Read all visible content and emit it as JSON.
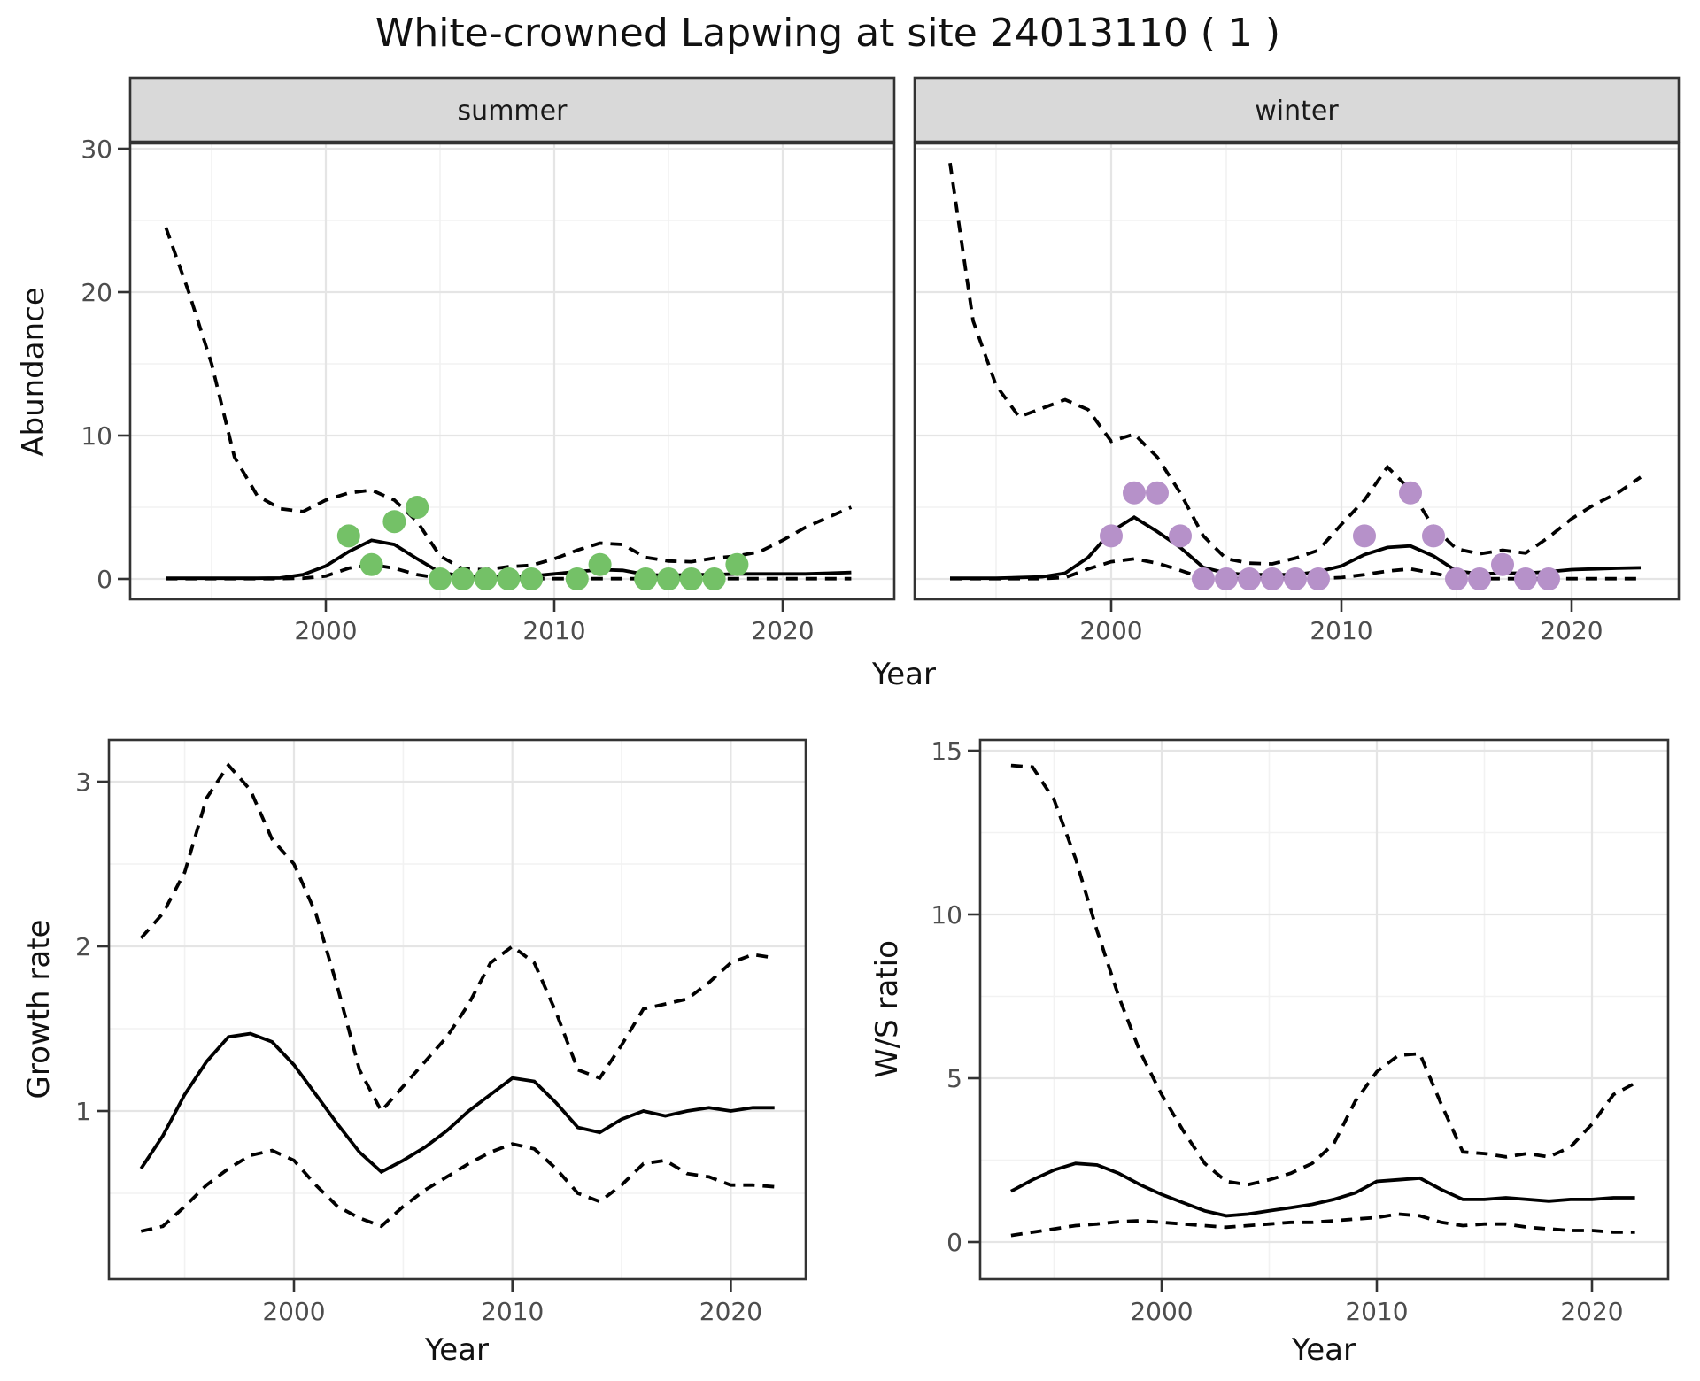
{
  "title": "White-crowned Lapwing at site 24013110 ( 1 )",
  "axis_titles": {
    "abundance": "Abundance",
    "year_top": "Year",
    "growth": "Growth rate",
    "year_growth": "Year",
    "ws": "W/S ratio",
    "year_ws": "Year"
  },
  "colors": {
    "summer_dots": "#74c167",
    "winter_dots": "#b691c9",
    "line": "#000000",
    "panel_border": "#333333",
    "grid_major": "#e5e5e5",
    "grid_minor": "#f2f2f2",
    "strip_bg": "#d9d9d9",
    "tick_text": "#4d4d4d"
  },
  "chart_data": {
    "type": "line",
    "title": "White-crowned Lapwing at site 24013110 ( 1 )",
    "abundance": {
      "ylabel": "Abundance",
      "xlabel": "Year",
      "x_start": 1993,
      "xticks": [
        2000,
        2010,
        2020
      ],
      "x_minor": [
        1995,
        2005,
        2015
      ],
      "yticks": [
        0,
        10,
        20,
        30
      ],
      "y_minor": [
        5,
        15,
        25
      ],
      "ylim": [
        -1.4,
        30.4
      ],
      "panels": [
        {
          "label": "summer",
          "fit": [
            0.05,
            0.05,
            0.05,
            0.05,
            0.05,
            0.07,
            0.3,
            0.9,
            1.9,
            2.7,
            2.4,
            1.4,
            0.45,
            0.2,
            0.15,
            0.15,
            0.2,
            0.35,
            0.5,
            0.65,
            0.6,
            0.3,
            0.25,
            0.3,
            0.3,
            0.35,
            0.35,
            0.35,
            0.35,
            0.4,
            0.45
          ],
          "upper": [
            24.5,
            20,
            15,
            8.5,
            5.8,
            4.9,
            4.7,
            5.5,
            6.0,
            6.2,
            5.5,
            4.0,
            1.6,
            0.7,
            0.65,
            0.85,
            0.95,
            1.4,
            2.0,
            2.5,
            2.4,
            1.5,
            1.25,
            1.2,
            1.45,
            1.6,
            1.9,
            2.7,
            3.6,
            4.3,
            5.0
          ],
          "lower": [
            0.02,
            0.02,
            0.02,
            0.02,
            0.02,
            0.02,
            0.05,
            0.2,
            0.75,
            1.0,
            0.75,
            0.3,
            0.05,
            0.02,
            0.02,
            0.02,
            0.02,
            0.02,
            0.02,
            0.02,
            0.02,
            0.02,
            0.02,
            0.02,
            0.02,
            0.02,
            0.02,
            0.02,
            0.02,
            0.02,
            0.02
          ],
          "obs": [
            [
              2001,
              3
            ],
            [
              2002,
              1
            ],
            [
              2003,
              4
            ],
            [
              2004,
              5
            ],
            [
              2005,
              0
            ],
            [
              2006,
              0
            ],
            [
              2007,
              0
            ],
            [
              2008,
              0
            ],
            [
              2009,
              0
            ],
            [
              2011,
              0
            ],
            [
              2012,
              1
            ],
            [
              2014,
              0
            ],
            [
              2015,
              0
            ],
            [
              2016,
              0
            ],
            [
              2017,
              0
            ],
            [
              2018,
              1
            ]
          ]
        },
        {
          "label": "winter",
          "fit": [
            0.05,
            0.05,
            0.05,
            0.1,
            0.15,
            0.4,
            1.5,
            3.3,
            4.3,
            3.3,
            2.2,
            0.8,
            0.4,
            0.3,
            0.3,
            0.3,
            0.5,
            0.9,
            1.7,
            2.2,
            2.3,
            1.6,
            0.55,
            0.35,
            0.4,
            0.4,
            0.5,
            0.65,
            0.7,
            0.75,
            0.78
          ],
          "upper": [
            29,
            18,
            13.5,
            11.3,
            11.9,
            12.5,
            11.8,
            9.6,
            10.1,
            8.5,
            6.0,
            3.0,
            1.4,
            1.1,
            1.05,
            1.45,
            2.0,
            3.8,
            5.5,
            7.8,
            6.2,
            3.6,
            2.1,
            1.75,
            2.0,
            1.8,
            2.9,
            4.2,
            5.2,
            6.0,
            7.1
          ],
          "lower": [
            0.02,
            0.02,
            0.02,
            0.02,
            0.02,
            0.1,
            0.7,
            1.2,
            1.4,
            1.1,
            0.6,
            0.05,
            0.03,
            0.03,
            0.03,
            0.03,
            0.03,
            0.1,
            0.3,
            0.55,
            0.7,
            0.4,
            0.05,
            0.02,
            0.02,
            0.02,
            0.02,
            0.02,
            0.02,
            0.02,
            0.02
          ],
          "obs": [
            [
              2000,
              3
            ],
            [
              2001,
              6
            ],
            [
              2002,
              6
            ],
            [
              2003,
              3
            ],
            [
              2004,
              0
            ],
            [
              2005,
              0
            ],
            [
              2006,
              0
            ],
            [
              2007,
              0
            ],
            [
              2008,
              0
            ],
            [
              2009,
              0
            ],
            [
              2011,
              3
            ],
            [
              2013,
              6
            ],
            [
              2014,
              3
            ],
            [
              2015,
              0
            ],
            [
              2016,
              0
            ],
            [
              2017,
              1
            ],
            [
              2018,
              0
            ],
            [
              2019,
              0
            ]
          ]
        }
      ]
    },
    "growth_rate": {
      "ylabel": "Growth rate",
      "xlabel": "Year",
      "x_start": 1993,
      "xticks": [
        2000,
        2010,
        2020
      ],
      "x_minor": [
        1995,
        2005,
        2015
      ],
      "yticks": [
        1,
        2,
        3
      ],
      "y_minor": [
        0.5,
        1.5,
        2.5
      ],
      "ylim": [
        0,
        3.25
      ],
      "fit": [
        0.65,
        0.85,
        1.1,
        1.3,
        1.45,
        1.47,
        1.42,
        1.28,
        1.1,
        0.92,
        0.75,
        0.63,
        0.7,
        0.78,
        0.88,
        1.0,
        1.1,
        1.2,
        1.18,
        1.05,
        0.9,
        0.87,
        0.95,
        1.0,
        0.97,
        1.0,
        1.02,
        1.0,
        1.02,
        1.02
      ],
      "upper": [
        2.05,
        2.2,
        2.45,
        2.9,
        3.1,
        2.95,
        2.65,
        2.5,
        2.2,
        1.75,
        1.25,
        1.0,
        1.15,
        1.3,
        1.45,
        1.65,
        1.9,
        2.0,
        1.9,
        1.6,
        1.25,
        1.2,
        1.4,
        1.62,
        1.65,
        1.68,
        1.78,
        1.9,
        1.95,
        1.93
      ],
      "lower": [
        0.27,
        0.3,
        0.42,
        0.55,
        0.65,
        0.73,
        0.76,
        0.7,
        0.55,
        0.42,
        0.35,
        0.3,
        0.42,
        0.52,
        0.6,
        0.68,
        0.75,
        0.8,
        0.77,
        0.65,
        0.5,
        0.45,
        0.55,
        0.68,
        0.7,
        0.62,
        0.6,
        0.55,
        0.55,
        0.54
      ]
    },
    "ws_ratio": {
      "ylabel": "W/S ratio",
      "xlabel": "Year",
      "x_start": 1993,
      "xticks": [
        2000,
        2010,
        2020
      ],
      "x_minor": [
        1995,
        2005,
        2015
      ],
      "yticks": [
        0,
        5,
        10,
        15
      ],
      "y_minor": [
        2.5,
        7.5,
        12.5
      ],
      "ylim": [
        -1.1,
        15.3
      ],
      "fit": [
        1.55,
        1.9,
        2.2,
        2.4,
        2.35,
        2.1,
        1.75,
        1.45,
        1.2,
        0.95,
        0.8,
        0.85,
        0.95,
        1.05,
        1.15,
        1.3,
        1.5,
        1.85,
        1.9,
        1.95,
        1.6,
        1.3,
        1.3,
        1.35,
        1.3,
        1.25,
        1.3,
        1.3,
        1.35,
        1.35
      ],
      "upper": [
        14.55,
        14.5,
        13.5,
        11.7,
        9.5,
        7.5,
        5.8,
        4.5,
        3.4,
        2.4,
        1.85,
        1.75,
        1.9,
        2.1,
        2.4,
        3.0,
        4.3,
        5.2,
        5.7,
        5.75,
        4.2,
        2.75,
        2.7,
        2.6,
        2.7,
        2.6,
        2.9,
        3.6,
        4.5,
        4.85
      ],
      "lower": [
        0.2,
        0.3,
        0.4,
        0.5,
        0.55,
        0.62,
        0.65,
        0.6,
        0.55,
        0.5,
        0.45,
        0.5,
        0.55,
        0.6,
        0.6,
        0.65,
        0.7,
        0.75,
        0.85,
        0.8,
        0.6,
        0.5,
        0.55,
        0.55,
        0.45,
        0.4,
        0.35,
        0.35,
        0.3,
        0.3
      ]
    }
  }
}
